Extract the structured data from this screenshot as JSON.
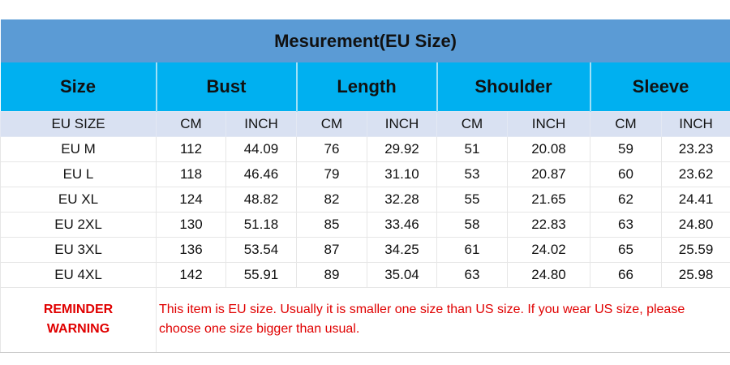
{
  "title": "Mesurement(EU Size)",
  "headers": [
    "Size",
    "Bust",
    "Length",
    "Shoulder",
    "Sleeve"
  ],
  "subheaders": [
    "EU SIZE",
    "CM",
    "INCH",
    "CM",
    "INCH",
    "CM",
    "INCH",
    "CM",
    "INCH"
  ],
  "rows": [
    [
      "EU M",
      "112",
      "44.09",
      "76",
      "29.92",
      "51",
      "20.08",
      "59",
      "23.23"
    ],
    [
      "EU L",
      "118",
      "46.46",
      "79",
      "31.10",
      "53",
      "20.87",
      "60",
      "23.62"
    ],
    [
      "EU XL",
      "124",
      "48.82",
      "82",
      "32.28",
      "55",
      "21.65",
      "62",
      "24.41"
    ],
    [
      "EU 2XL",
      "130",
      "51.18",
      "85",
      "33.46",
      "58",
      "22.83",
      "63",
      "24.80"
    ],
    [
      "EU 3XL",
      "136",
      "53.54",
      "87",
      "34.25",
      "61",
      "24.02",
      "65",
      "25.59"
    ],
    [
      "EU 4XL",
      "142",
      "55.91",
      "89",
      "35.04",
      "63",
      "24.80",
      "66",
      "25.98"
    ]
  ],
  "reminder": {
    "label_line1": "REMINDER",
    "label_line2": "WARNING",
    "text_line1": "This item is EU size. Usually it is smaller one size than US size. If you wear US size, please",
    "text_line2": "choose one size bigger than usual."
  },
  "colors": {
    "title_bg": "#5b9bd5",
    "header_bg": "#00b0f0",
    "subheader_bg": "#d9e1f2",
    "warning": "#e00000"
  }
}
